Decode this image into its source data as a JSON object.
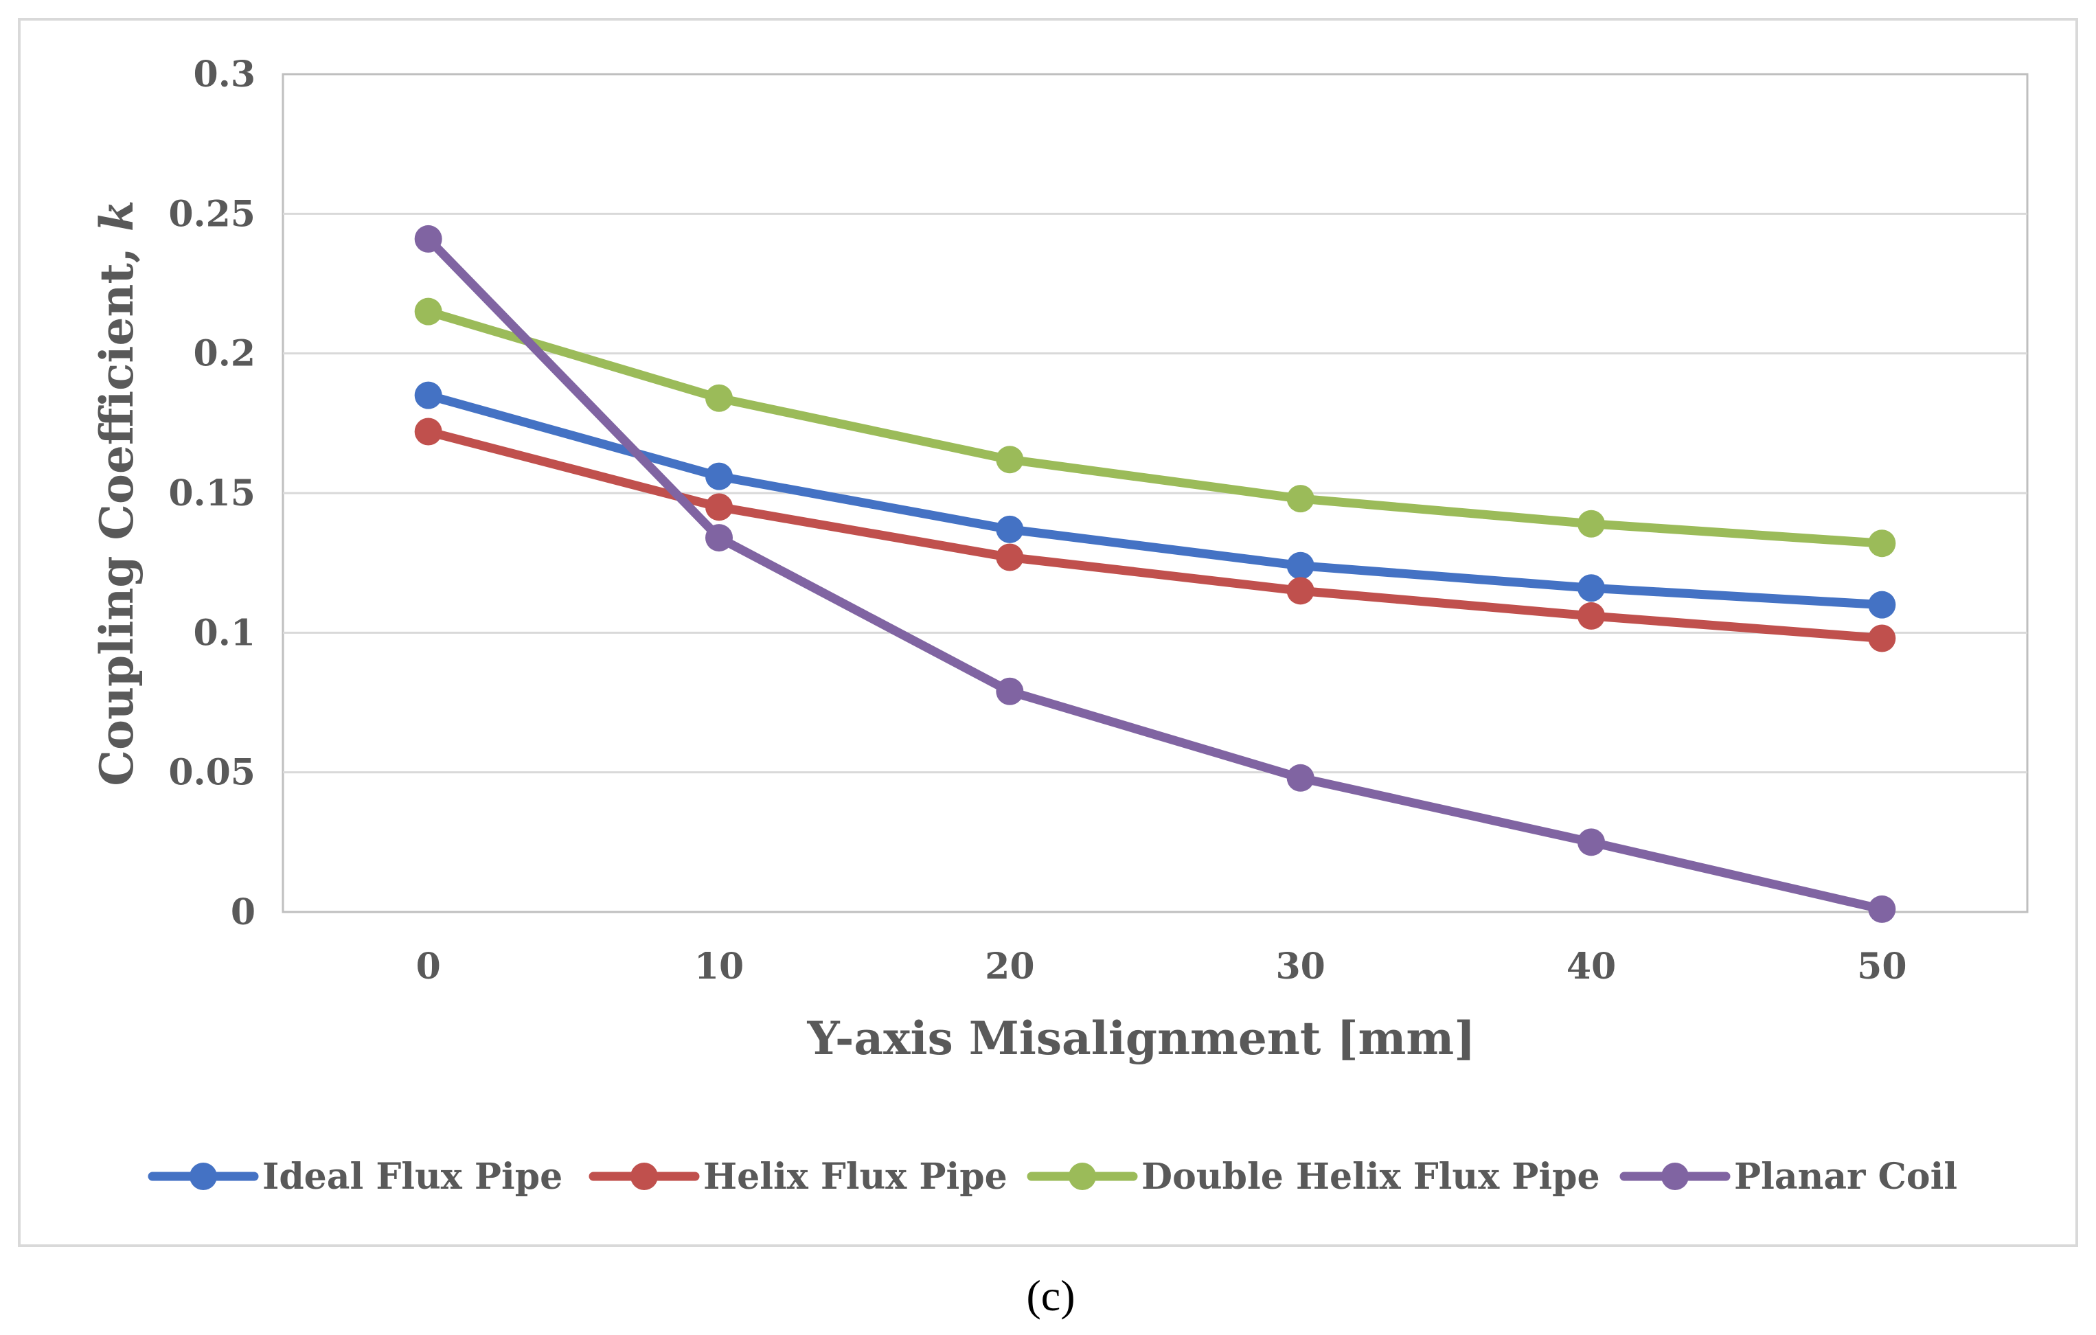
{
  "chart_data": {
    "type": "line",
    "title": "",
    "xlabel": "Y-axis Misalignment [mm]",
    "ylabel_main": "Coupling Coefficient, ",
    "ylabel_var": "k",
    "x": [
      0,
      10,
      20,
      30,
      40,
      50
    ],
    "x_tick_labels": [
      "0",
      "10",
      "20",
      "30",
      "40",
      "50"
    ],
    "ylim": [
      0,
      0.3
    ],
    "y_ticks": [
      0,
      0.05,
      0.1,
      0.15,
      0.2,
      0.25,
      0.3
    ],
    "y_tick_labels": [
      "0",
      "0.05",
      "0.1",
      "0.15",
      "0.2",
      "0.25",
      "0.3"
    ],
    "grid": true,
    "legend_position": "bottom",
    "series": [
      {
        "name": "Ideal Flux Pipe",
        "color": "#4472C4",
        "values": [
          0.185,
          0.156,
          0.137,
          0.124,
          0.116,
          0.11
        ]
      },
      {
        "name": "Helix Flux Pipe",
        "color": "#C0504D",
        "values": [
          0.172,
          0.145,
          0.127,
          0.115,
          0.106,
          0.098
        ]
      },
      {
        "name": "Double Helix Flux Pipe",
        "color": "#9BBB59",
        "values": [
          0.215,
          0.184,
          0.162,
          0.148,
          0.139,
          0.132
        ]
      },
      {
        "name": "Planar Coil",
        "color": "#8064A2",
        "values": [
          0.241,
          0.134,
          0.079,
          0.048,
          0.025,
          0.001
        ]
      }
    ]
  },
  "caption": "(c)"
}
